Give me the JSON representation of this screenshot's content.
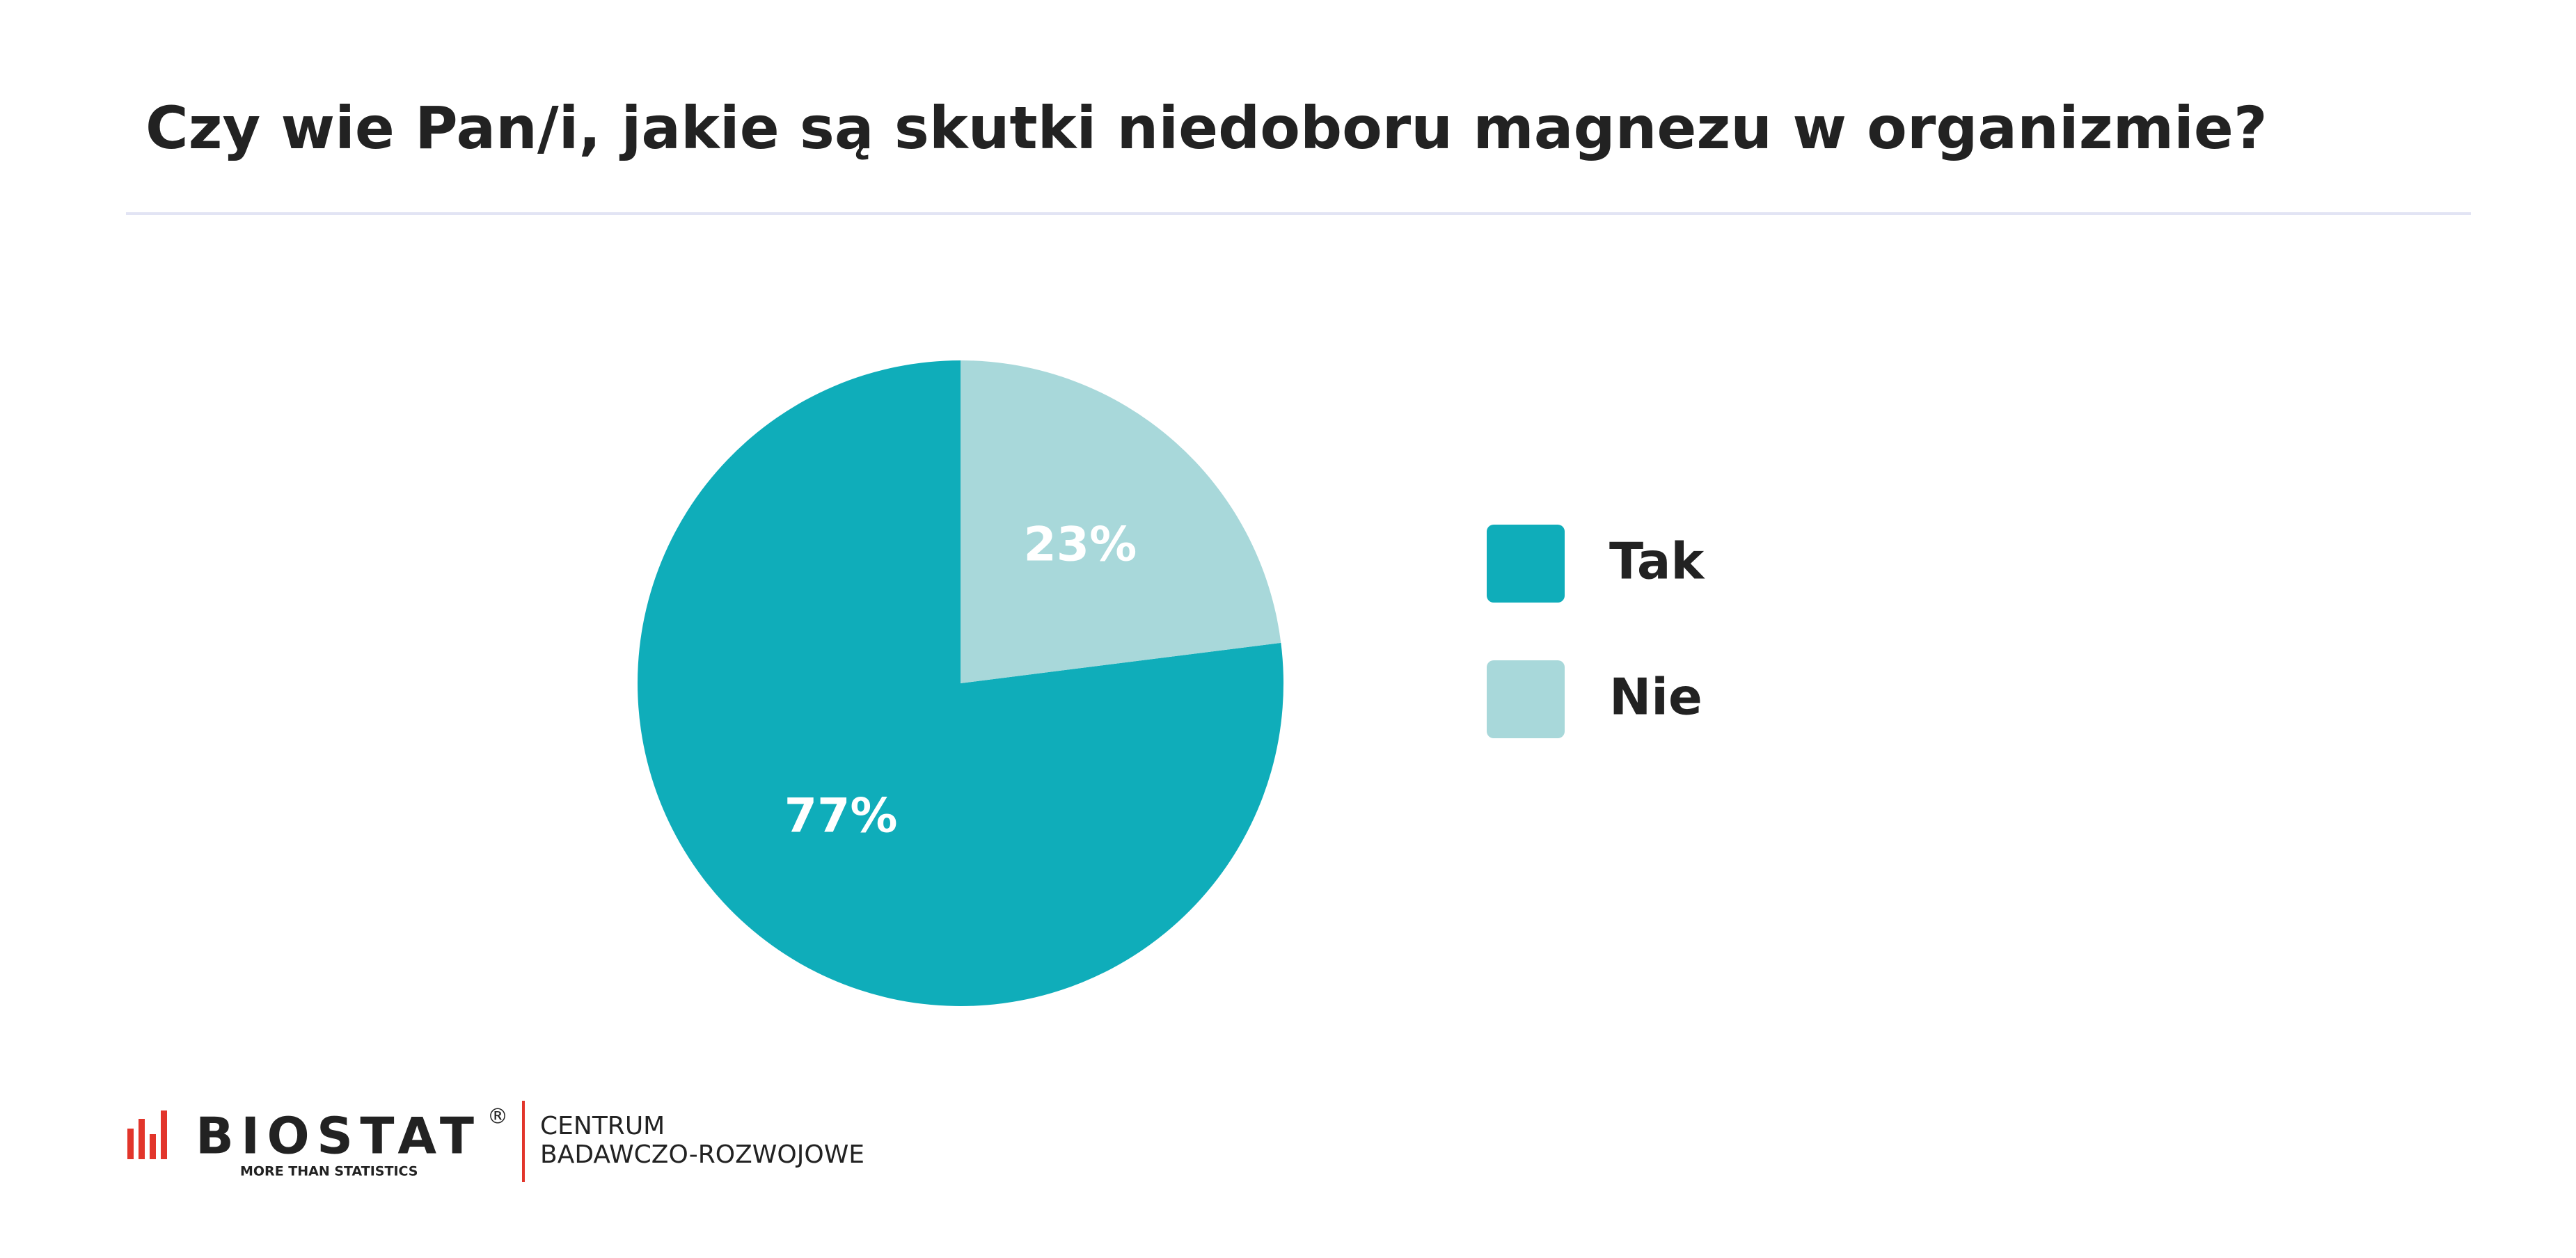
{
  "chart_data": {
    "type": "pie",
    "title": "Czy wie Pan/i, jakie są skutki niedoboru magnezu w organizmie?",
    "categories": [
      "Tak",
      "Nie"
    ],
    "values": [
      77,
      23
    ],
    "value_labels": [
      "77%",
      "23%"
    ],
    "colors": [
      "#0fadba",
      "#a8d8da"
    ],
    "legend": "right"
  },
  "footer": {
    "brand": "BIOSTAT",
    "registered": "®",
    "tagline": "MORE THAN STATISTICS",
    "unit_line1": "CENTRUM",
    "unit_line2": "BADAWCZO-ROZWOJOWE"
  }
}
